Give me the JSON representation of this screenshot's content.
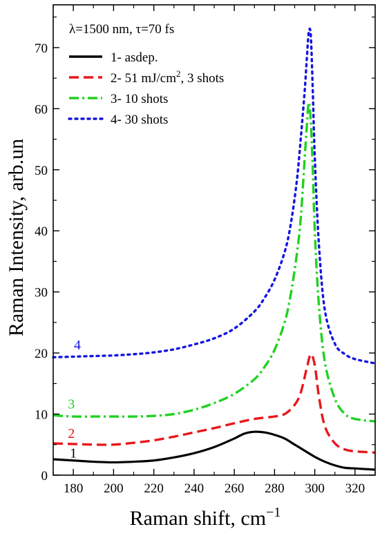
{
  "chart_data": {
    "type": "line",
    "title": "",
    "xlabel": "Raman shift, cm",
    "xlabel_superscript": "−1",
    "ylabel": "Raman Intensity, arb.un",
    "xlim": [
      170,
      330
    ],
    "ylim": [
      0,
      77
    ],
    "xticks": [
      180,
      200,
      220,
      240,
      260,
      280,
      300,
      320
    ],
    "yticks": [
      0,
      10,
      20,
      30,
      40,
      50,
      60,
      70
    ],
    "annotation": "λ=1500 nm, τ=70 fs",
    "grid": false,
    "legend_position": "top-left",
    "series": [
      {
        "name": "1- asdep.",
        "legend_label": "1- asdep.",
        "curve_label": "1",
        "color": "#000000",
        "dash": "solid",
        "x": [
          170,
          180,
          190,
          200,
          210,
          220,
          230,
          240,
          250,
          260,
          265,
          270,
          275,
          280,
          285,
          290,
          295,
          300,
          305,
          310,
          315,
          320,
          325,
          330
        ],
        "y": [
          2.6,
          2.4,
          2.2,
          2.1,
          2.2,
          2.4,
          2.9,
          3.6,
          4.6,
          6.0,
          6.8,
          7.1,
          7.0,
          6.6,
          6.0,
          5.0,
          4.0,
          3.0,
          2.2,
          1.6,
          1.2,
          1.1,
          1.0,
          0.9
        ]
      },
      {
        "name": "2- 51 mJ/cm², 3 shots",
        "legend_label": "2- 51 mJ/cm",
        "legend_sup": "2",
        "legend_suffix": ", 3 shots",
        "curve_label": "2",
        "color": "#e8161b",
        "dash": "dashed",
        "x": [
          170,
          180,
          190,
          200,
          210,
          220,
          230,
          240,
          250,
          260,
          270,
          280,
          285,
          290,
          293,
          296,
          298,
          300,
          302,
          305,
          310,
          315,
          320,
          330
        ],
        "y": [
          5.2,
          5.1,
          5.0,
          5.0,
          5.3,
          5.7,
          6.3,
          7.0,
          7.7,
          8.5,
          9.2,
          9.6,
          10.0,
          11.5,
          13.5,
          17.5,
          19.8,
          18.0,
          13.0,
          8.0,
          5.2,
          4.2,
          3.9,
          3.7
        ]
      },
      {
        "name": "3- 10 shots",
        "legend_label": "3- 10 shots",
        "curve_label": "3",
        "color": "#1fd21f",
        "dash": "dashdot",
        "x": [
          170,
          180,
          190,
          200,
          210,
          220,
          230,
          240,
          250,
          260,
          270,
          275,
          280,
          285,
          288,
          291,
          293,
          295,
          296,
          297,
          298,
          299,
          300,
          302,
          305,
          310,
          315,
          320,
          330
        ],
        "y": [
          9.8,
          9.6,
          9.6,
          9.6,
          9.6,
          9.7,
          10.0,
          10.7,
          11.8,
          13.3,
          15.7,
          17.7,
          20.5,
          25.0,
          29.5,
          36.0,
          42.0,
          52.0,
          57.0,
          61.0,
          58.0,
          50.0,
          40.0,
          28.0,
          18.5,
          12.5,
          10.0,
          9.2,
          8.8
        ]
      },
      {
        "name": "4- 30 shots",
        "legend_label": "4- 30 shots",
        "curve_label": "4",
        "color": "#1414e0",
        "dash": "dotted",
        "x": [
          170,
          180,
          190,
          200,
          210,
          220,
          230,
          240,
          250,
          260,
          270,
          275,
          280,
          285,
          288,
          291,
          293,
          295,
          296,
          297,
          298,
          299,
          300,
          302,
          305,
          310,
          315,
          320,
          330
        ],
        "y": [
          19.3,
          19.4,
          19.5,
          19.6,
          19.8,
          20.1,
          20.6,
          21.4,
          22.4,
          24.0,
          26.8,
          29.0,
          32.0,
          36.5,
          41.0,
          48.0,
          55.0,
          63.0,
          68.0,
          72.5,
          72.0,
          63.0,
          52.0,
          38.0,
          27.0,
          21.5,
          19.8,
          19.0,
          18.3
        ]
      }
    ]
  }
}
